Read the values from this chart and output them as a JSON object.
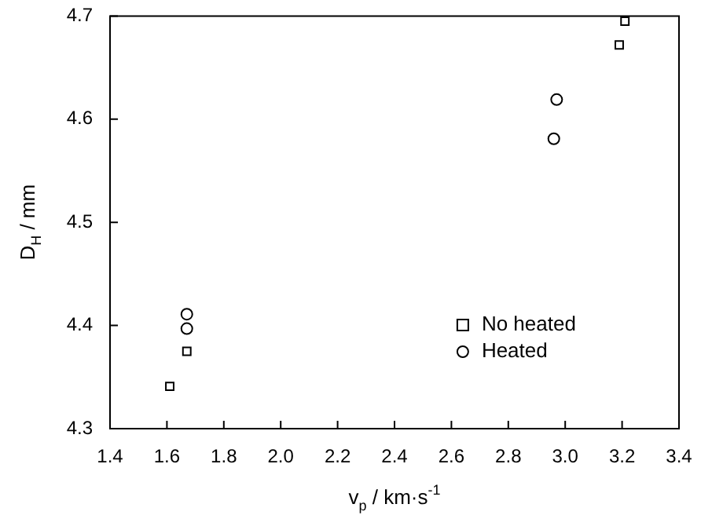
{
  "chart_data": {
    "type": "scatter",
    "xlabel": "v$_{p}$ / km·s$^{-1}$",
    "ylabel": "D$_{H}$ / mm",
    "xlim": [
      1.4,
      3.4
    ],
    "xticks": [
      1.4,
      1.6,
      1.8,
      {
        "value": 2,
        "label": "2.0"
      },
      2.2,
      2.4,
      2.6,
      2.8,
      {
        "value": 3,
        "label": "3.0"
      },
      3.2,
      3.4
    ],
    "ylim": [
      4.3,
      4.7
    ],
    "yticks": [
      4.3,
      4.4,
      4.5,
      4.6,
      4.7
    ],
    "legend": "bottom right",
    "grid": false,
    "series": [
      {
        "name": "No heated",
        "color": "#000000",
        "marker": "square",
        "x": [
          1.61,
          1.67,
          3.19,
          3.21
        ],
        "values": [
          4.341,
          4.375,
          4.672,
          4.695
        ]
      },
      {
        "name": "Heated",
        "color": "#000000",
        "marker": "circle",
        "x": [
          1.67,
          1.67,
          2.96,
          2.97
        ],
        "values": [
          4.397,
          4.411,
          4.581,
          4.619
        ]
      }
    ]
  }
}
